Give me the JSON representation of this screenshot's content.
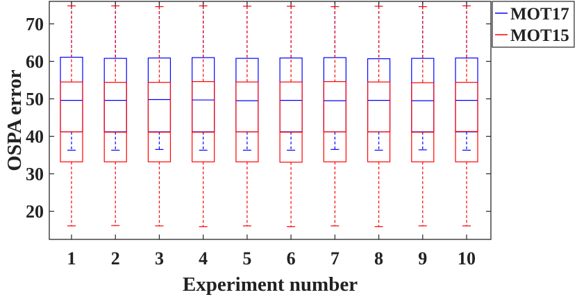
{
  "chart_data": {
    "type": "box",
    "xlabel": "Experiment number",
    "ylabel": "OSPA error",
    "categories": [
      "1",
      "2",
      "3",
      "4",
      "5",
      "6",
      "7",
      "8",
      "9",
      "10"
    ],
    "ylim": [
      12.5,
      76
    ],
    "yticks": [
      "20",
      "30",
      "40",
      "50",
      "60",
      "70"
    ],
    "grid": false,
    "legend_position": "top-right-outside",
    "series": [
      {
        "name": "MOT17",
        "color": "#0000ff",
        "boxes": [
          {
            "min": 36.3,
            "q1": 41.2,
            "median": 49.6,
            "q3": 61.1,
            "max": 76.0
          },
          {
            "min": 36.3,
            "q1": 41.2,
            "median": 49.6,
            "q3": 60.8,
            "max": 76.0
          },
          {
            "min": 36.5,
            "q1": 41.2,
            "median": 49.8,
            "q3": 60.9,
            "max": 76.0
          },
          {
            "min": 36.3,
            "q1": 41.2,
            "median": 49.7,
            "q3": 61.0,
            "max": 76.0
          },
          {
            "min": 36.3,
            "q1": 41.2,
            "median": 49.5,
            "q3": 60.8,
            "max": 76.0
          },
          {
            "min": 36.3,
            "q1": 41.2,
            "median": 49.6,
            "q3": 60.9,
            "max": 76.0
          },
          {
            "min": 36.5,
            "q1": 41.2,
            "median": 49.5,
            "q3": 61.0,
            "max": 76.0
          },
          {
            "min": 36.3,
            "q1": 41.2,
            "median": 49.6,
            "q3": 60.7,
            "max": 76.0
          },
          {
            "min": 36.4,
            "q1": 41.2,
            "median": 49.5,
            "q3": 60.8,
            "max": 76.0
          },
          {
            "min": 36.3,
            "q1": 41.2,
            "median": 49.6,
            "q3": 60.9,
            "max": 76.0
          }
        ]
      },
      {
        "name": "MOT15",
        "color": "#ff0000",
        "boxes": [
          {
            "min": 16.1,
            "q1": 33.2,
            "median": 41.2,
            "q3": 54.5,
            "max": 74.8
          },
          {
            "min": 16.2,
            "q1": 33.2,
            "median": 41.1,
            "q3": 54.4,
            "max": 74.8
          },
          {
            "min": 16.1,
            "q1": 33.2,
            "median": 41.1,
            "q3": 54.4,
            "max": 74.6
          },
          {
            "min": 15.9,
            "q1": 33.2,
            "median": 41.1,
            "q3": 54.6,
            "max": 74.8
          },
          {
            "min": 16.1,
            "q1": 33.2,
            "median": 41.2,
            "q3": 54.5,
            "max": 74.7
          },
          {
            "min": 15.9,
            "q1": 33.1,
            "median": 41.1,
            "q3": 54.5,
            "max": 74.7
          },
          {
            "min": 16.1,
            "q1": 33.2,
            "median": 41.2,
            "q3": 54.6,
            "max": 74.6
          },
          {
            "min": 15.9,
            "q1": 33.2,
            "median": 41.2,
            "q3": 54.5,
            "max": 74.7
          },
          {
            "min": 16.1,
            "q1": 33.2,
            "median": 41.1,
            "q3": 54.3,
            "max": 74.6
          },
          {
            "min": 16.1,
            "q1": 33.2,
            "median": 41.3,
            "q3": 54.4,
            "max": 74.8
          }
        ]
      }
    ]
  }
}
